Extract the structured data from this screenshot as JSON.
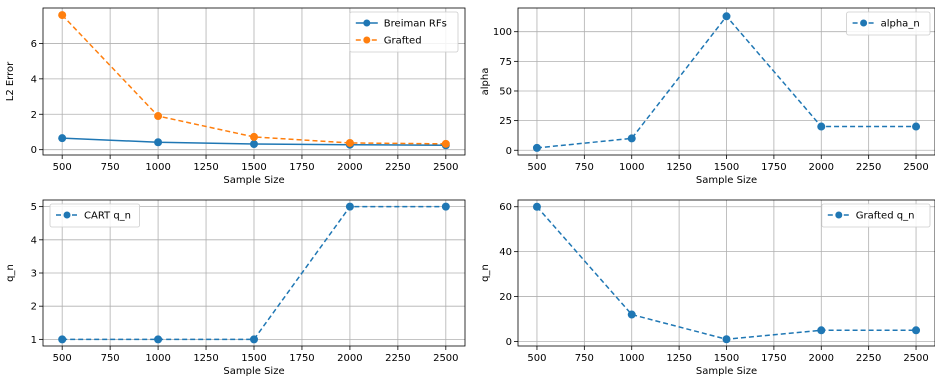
{
  "chart_data": [
    {
      "type": "line",
      "xlabel": "Sample Size",
      "ylabel": "L2 Error",
      "x": [
        500,
        1000,
        1500,
        2000,
        2500
      ],
      "xlim": [
        400,
        2600
      ],
      "xticks": [
        500,
        750,
        1000,
        1250,
        1500,
        1750,
        2000,
        2250,
        2500
      ],
      "ylim": [
        -0.3,
        8.0
      ],
      "yticks": [
        0,
        2,
        4,
        6
      ],
      "grid": true,
      "legend_position": "top-right",
      "series": [
        {
          "name": "Breiman RFs",
          "values": [
            0.65,
            0.42,
            0.32,
            0.28,
            0.25
          ],
          "color": "#1f77b4",
          "style": "solid"
        },
        {
          "name": "Grafted",
          "values": [
            7.6,
            1.9,
            0.72,
            0.38,
            0.33
          ],
          "color": "#ff7f0e",
          "style": "dashed"
        }
      ]
    },
    {
      "type": "line",
      "xlabel": "Sample Size",
      "ylabel": "alpha",
      "x": [
        500,
        1000,
        1500,
        2000,
        2500
      ],
      "xlim": [
        400,
        2600
      ],
      "xticks": [
        500,
        750,
        1000,
        1250,
        1500,
        1750,
        2000,
        2250,
        2500
      ],
      "ylim": [
        -4,
        120
      ],
      "yticks": [
        0,
        25,
        50,
        75,
        100
      ],
      "grid": true,
      "legend_position": "top-right",
      "series": [
        {
          "name": "alpha_n",
          "values": [
            2,
            10,
            113,
            20,
            20
          ],
          "color": "#1f77b4",
          "style": "dashed"
        }
      ]
    },
    {
      "type": "line",
      "xlabel": "Sample Size",
      "ylabel": "q_n",
      "x": [
        500,
        1000,
        1500,
        2000,
        2500
      ],
      "xlim": [
        400,
        2600
      ],
      "xticks": [
        500,
        750,
        1000,
        1250,
        1500,
        1750,
        2000,
        2250,
        2500
      ],
      "ylim": [
        0.8,
        5.2
      ],
      "yticks": [
        1,
        2,
        3,
        4,
        5
      ],
      "grid": true,
      "legend_position": "top-left",
      "series": [
        {
          "name": "CART q_n",
          "values": [
            1,
            1,
            1,
            5,
            5
          ],
          "color": "#1f77b4",
          "style": "dashed"
        }
      ]
    },
    {
      "type": "line",
      "xlabel": "Sample Size",
      "ylabel": "q_n",
      "x": [
        500,
        1000,
        1500,
        2000,
        2500
      ],
      "xlim": [
        400,
        2600
      ],
      "xticks": [
        500,
        750,
        1000,
        1250,
        1500,
        1750,
        2000,
        2250,
        2500
      ],
      "ylim": [
        -2,
        63
      ],
      "yticks": [
        0,
        20,
        40,
        60
      ],
      "grid": true,
      "legend_position": "top-right",
      "series": [
        {
          "name": "Grafted q_n",
          "values": [
            60,
            12,
            1,
            5,
            5
          ],
          "color": "#1f77b4",
          "style": "dashed"
        }
      ]
    }
  ]
}
